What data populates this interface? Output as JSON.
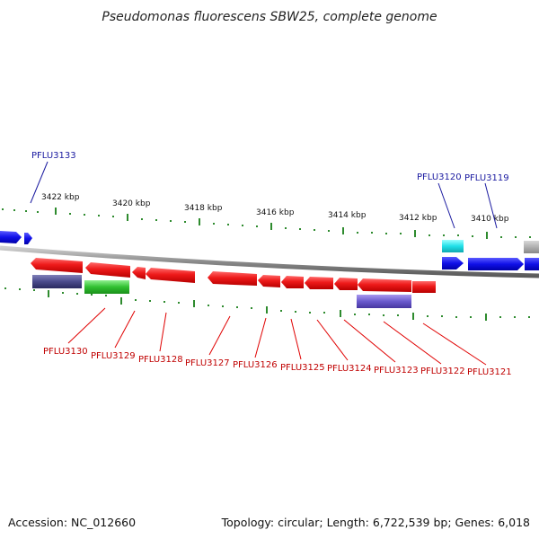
{
  "title": "Pseudomonas fluorescens SBW25, complete genome",
  "footer": {
    "accession": "Accession: NC_012660",
    "summary": "Topology: circular; Length: 6,722,539 bp; Genes: 6,018"
  },
  "scale_labels": [
    "3422 kbp",
    "3420 kbp",
    "3418 kbp",
    "3416 kbp",
    "3414 kbp",
    "3412 kbp",
    "3410 kbp"
  ],
  "colors": {
    "backbone": "#8c8c8c",
    "tick": "#2e8b2e",
    "gene_red": "#e81010",
    "gene_blue": "#1010e0",
    "gene_cyan": "#20e0e8",
    "gene_grey": "#a8a8a8",
    "gene_navy": "#4a4a8c",
    "gene_green": "#30c030",
    "gene_purple": "#6a5acd",
    "label_blue": "#1a1aa0",
    "label_red": "#c00000"
  },
  "genes_top": [
    {
      "id": "blue-left-1",
      "color": "#1010e0",
      "label": ""
    },
    {
      "id": "blue-left-2",
      "color": "#1010e0",
      "label": ""
    },
    {
      "id": "cyan-1",
      "color": "#20e0e8",
      "label": "PFLU3120"
    },
    {
      "id": "blue-right-1",
      "color": "#1010e0",
      "label": ""
    },
    {
      "id": "blue-right-2",
      "color": "#1010e0",
      "label": "PFLU3119"
    },
    {
      "id": "grey-1",
      "color": "#a8a8a8",
      "label": ""
    }
  ],
  "labels_top": [
    "PFLU3133",
    "PFLU3120",
    "PFLU3119"
  ],
  "labels_bottom": [
    "PFLU3130",
    "PFLU3129",
    "PFLU3128",
    "PFLU3127",
    "PFLU3126",
    "PFLU3125",
    "PFLU3124",
    "PFLU3123",
    "PFLU3122",
    "PFLU3121"
  ]
}
